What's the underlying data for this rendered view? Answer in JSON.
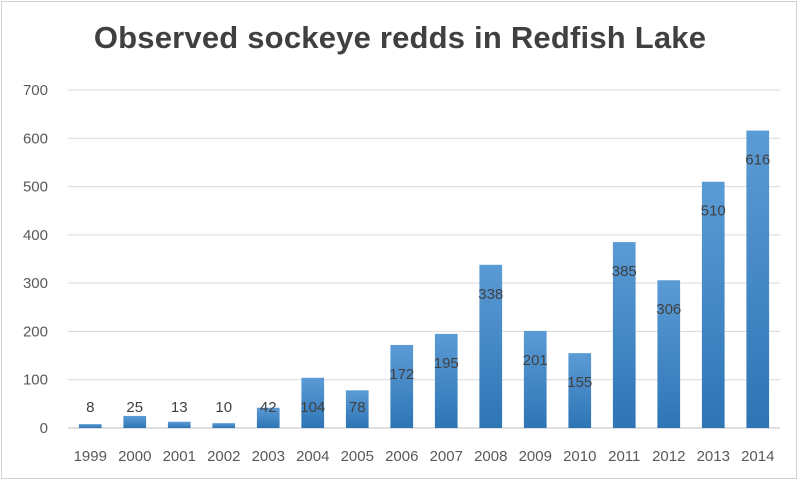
{
  "chart_data": {
    "type": "bar",
    "title": "Observed sockeye redds in Redfish Lake",
    "categories": [
      "1999",
      "2000",
      "2001",
      "2002",
      "2003",
      "2004",
      "2005",
      "2006",
      "2007",
      "2008",
      "2009",
      "2010",
      "2011",
      "2012",
      "2013",
      "2014"
    ],
    "values": [
      8,
      25,
      13,
      10,
      42,
      104,
      78,
      172,
      195,
      338,
      201,
      155,
      385,
      306,
      510,
      616
    ],
    "data_labels": [
      "8",
      "25",
      "13",
      "10",
      "42",
      "104",
      "78",
      "172",
      "195",
      "338",
      "201",
      "155",
      "385",
      "306",
      "510",
      "616"
    ],
    "yticks": [
      "0",
      "100",
      "200",
      "300",
      "400",
      "500",
      "600",
      "700"
    ],
    "ylim": [
      0,
      700
    ],
    "grid": true,
    "legend": "none",
    "bar_color_top": "#5b9bd5",
    "bar_color_bottom": "#2e75b6"
  }
}
